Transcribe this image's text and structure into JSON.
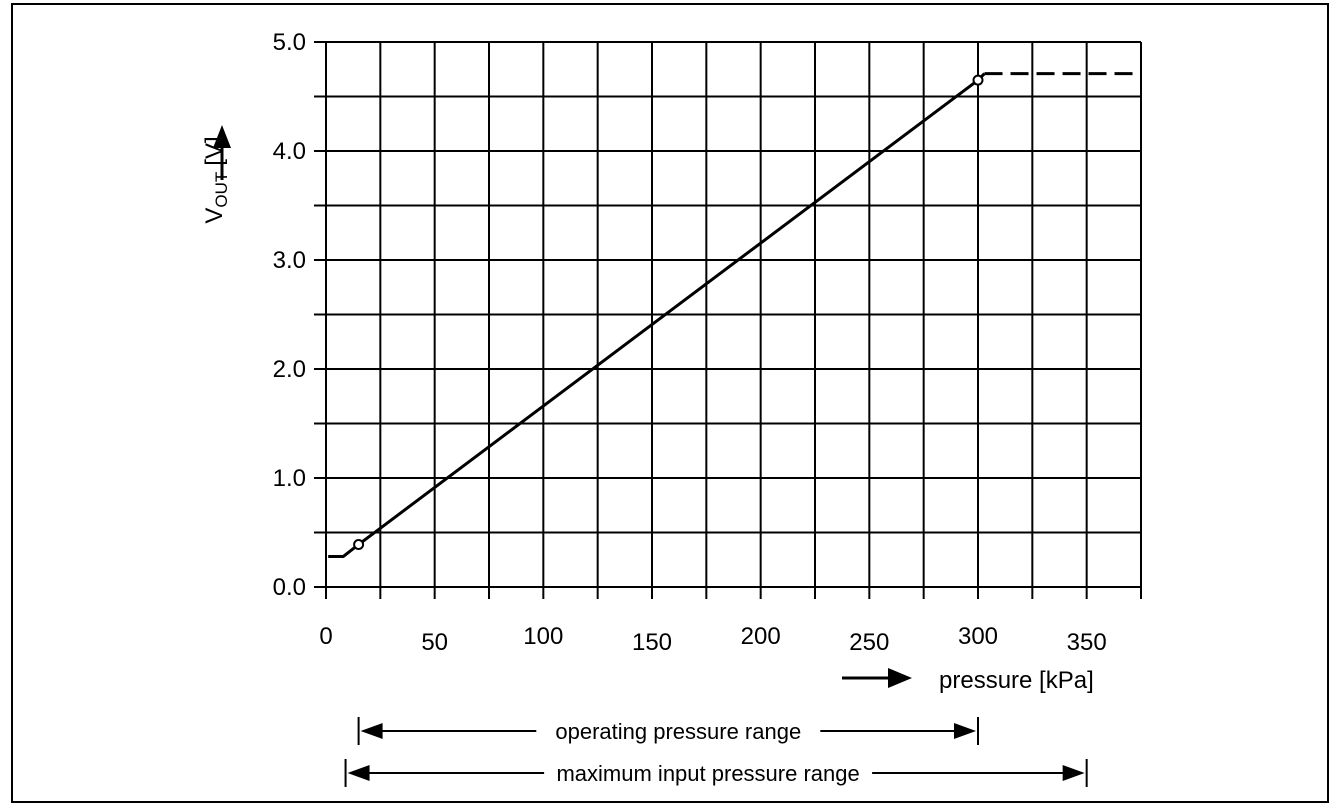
{
  "chart_data": {
    "type": "line",
    "title": "",
    "xlabel": "pressure  [kPa]",
    "ylabel_main": "V",
    "ylabel_sub": "OUT",
    "ylabel_unit": "[V]",
    "xlim": [
      0,
      375
    ],
    "ylim": [
      0,
      5.0
    ],
    "xticks": [
      {
        "value": 0,
        "label": "0"
      },
      {
        "value": 50,
        "label": "50"
      },
      {
        "value": 100,
        "label": "100"
      },
      {
        "value": 150,
        "label": "150"
      },
      {
        "value": 200,
        "label": "200"
      },
      {
        "value": 250,
        "label": "250"
      },
      {
        "value": 300,
        "label": "300"
      },
      {
        "value": 350,
        "label": "350"
      }
    ],
    "yticks": [
      {
        "value": 0,
        "label": "0.0"
      },
      {
        "value": 1,
        "label": "1.0"
      },
      {
        "value": 2,
        "label": "2.0"
      },
      {
        "value": 3,
        "label": "3.0"
      },
      {
        "value": 4,
        "label": "4.0"
      },
      {
        "value": 5,
        "label": "5.0"
      }
    ],
    "grid": true,
    "series": [
      {
        "style": "solid",
        "points": [
          [
            1,
            0.28
          ],
          [
            8,
            0.28
          ],
          [
            15,
            0.39
          ],
          [
            300,
            4.65
          ],
          [
            303,
            4.71
          ]
        ]
      },
      {
        "style": "dashed",
        "points": [
          [
            303,
            4.71
          ],
          [
            375,
            4.71
          ]
        ]
      }
    ],
    "markers": [
      [
        15,
        0.39
      ],
      [
        300,
        4.65
      ]
    ],
    "ranges": [
      {
        "label": "operating pressure range",
        "from": 15,
        "to": 300
      },
      {
        "label": "maximum input pressure range",
        "from": 9,
        "to": 350
      }
    ]
  }
}
